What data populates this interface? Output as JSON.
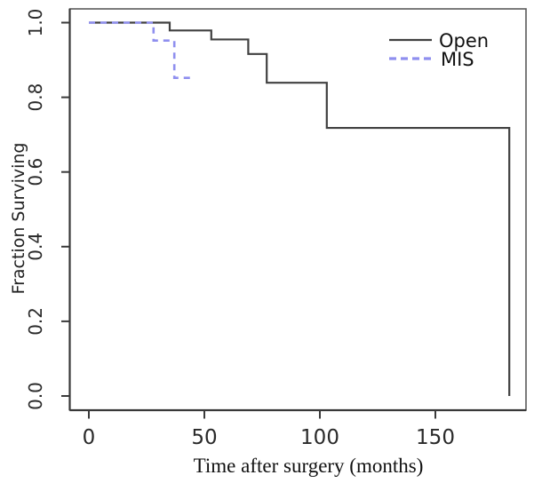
{
  "figure": {
    "kind": "kaplan-meier-survival-plot",
    "background_color": "#ffffff"
  },
  "chart_data": {
    "type": "line",
    "subtype": "step-survival",
    "title": "",
    "xlabel": "Time after surgery (months)",
    "ylabel": "Fraction Surviving",
    "xlim": [
      0,
      189
    ],
    "ylim": [
      0.0,
      1.04
    ],
    "x_ticks": [
      0,
      50,
      100,
      150
    ],
    "y_ticks": [
      "0.0",
      "0.2",
      "0.4",
      "0.6",
      "0.8",
      "1.0"
    ],
    "grid": false,
    "legend": {
      "position": "top-right",
      "entries": [
        "Open",
        "MIS"
      ]
    },
    "series": [
      {
        "name": "Open",
        "line_style": "solid",
        "color": "#404040",
        "steps": [
          {
            "t": 0,
            "s": 1.0
          },
          {
            "t": 35,
            "s": 0.979
          },
          {
            "t": 53,
            "s": 0.955
          },
          {
            "t": 69,
            "s": 0.916
          },
          {
            "t": 77,
            "s": 0.839
          },
          {
            "t": 103,
            "s": 0.718
          },
          {
            "t": 182,
            "s": 0.0
          }
        ],
        "end_time": 182
      },
      {
        "name": "MIS",
        "line_style": "dashed",
        "color": "#8f8fef",
        "steps": [
          {
            "t": 0,
            "s": 1.0
          },
          {
            "t": 28,
            "s": 0.952
          },
          {
            "t": 37,
            "s": 0.852
          }
        ],
        "end_time": 46
      }
    ]
  },
  "axes": {
    "box_color": "#5a5a5a",
    "axis_color": "#383838"
  }
}
